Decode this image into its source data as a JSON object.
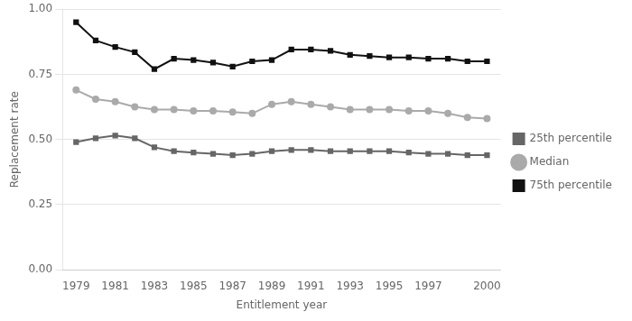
{
  "chart_data": {
    "type": "line",
    "ylabel": "Replacement rate",
    "xlabel": "Entitlement year",
    "x": [
      1979,
      1980,
      1981,
      1982,
      1983,
      1984,
      1985,
      1986,
      1987,
      1988,
      1989,
      1990,
      1991,
      1992,
      1993,
      1994,
      1995,
      1996,
      1997,
      1998,
      1999,
      2000
    ],
    "series": [
      {
        "name": "25th percentile",
        "color": "#666666",
        "marker": "square",
        "values": [
          0.49,
          0.505,
          0.515,
          0.505,
          0.47,
          0.455,
          0.45,
          0.445,
          0.44,
          0.445,
          0.455,
          0.46,
          0.46,
          0.455,
          0.455,
          0.455,
          0.455,
          0.45,
          0.445,
          0.445,
          0.44,
          0.44
        ]
      },
      {
        "name": "Median",
        "color": "#aaaaaa",
        "marker": "circle",
        "values": [
          0.69,
          0.655,
          0.645,
          0.625,
          0.615,
          0.615,
          0.61,
          0.61,
          0.605,
          0.6,
          0.635,
          0.645,
          0.635,
          0.625,
          0.615,
          0.615,
          0.615,
          0.61,
          0.61,
          0.6,
          0.585,
          0.58
        ]
      },
      {
        "name": "75th percentile",
        "color": "#111111",
        "marker": "square",
        "values": [
          0.95,
          0.88,
          0.855,
          0.835,
          0.77,
          0.81,
          0.805,
          0.795,
          0.78,
          0.8,
          0.805,
          0.845,
          0.845,
          0.84,
          0.825,
          0.82,
          0.815,
          0.815,
          0.81,
          0.81,
          0.8,
          0.8
        ]
      }
    ],
    "xlim": [
      1978.3,
      2000.7
    ],
    "xticks": [
      1979,
      1981,
      1983,
      1985,
      1987,
      1989,
      1991,
      1993,
      1995,
      1997,
      2000
    ],
    "ylim": [
      0.0,
      1.0
    ],
    "yticks": [
      {
        "value": 0,
        "label": "0.00"
      },
      0.25,
      {
        "value": 0.5,
        "label": "0.50"
      },
      0.75,
      {
        "value": 1,
        "label": "1.00"
      }
    ],
    "grid": "y",
    "legend": "right"
  }
}
